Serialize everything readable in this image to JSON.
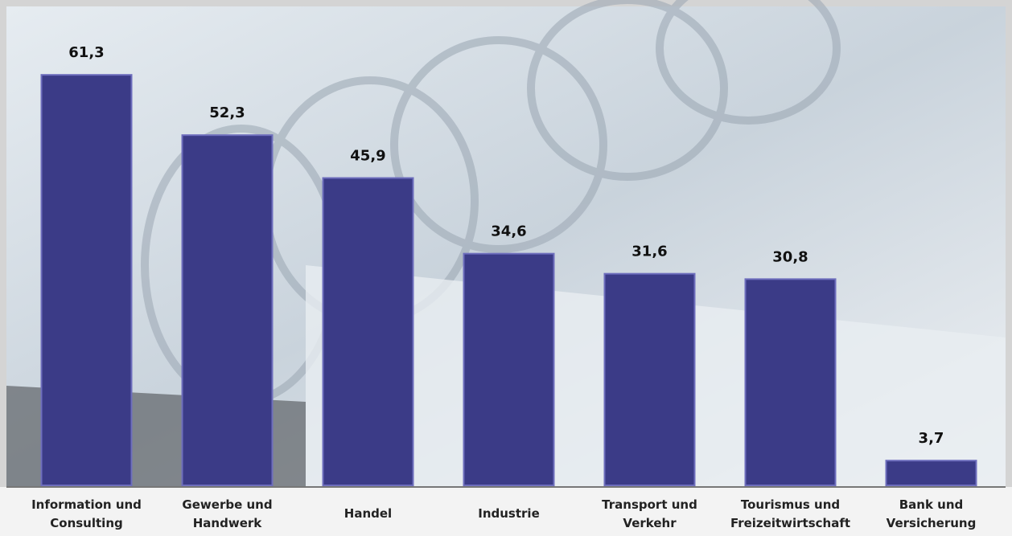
{
  "chart_data": {
    "type": "bar",
    "categories": [
      "Information und Consulting",
      "Gewerbe und Handwerk",
      "Handel",
      "Industrie",
      "Transport und Verkehr",
      "Tourismus und Freizeitwirtschaft",
      "Bank und Versicherung"
    ],
    "values": [
      61.3,
      52.3,
      45.9,
      34.6,
      31.6,
      30.8,
      3.7
    ],
    "value_labels": [
      "61,3",
      "52,3",
      "45,9",
      "34,6",
      "31,6",
      "30,8",
      "3,7"
    ],
    "color": "#3b3b87",
    "ylim": [
      0,
      72
    ]
  }
}
